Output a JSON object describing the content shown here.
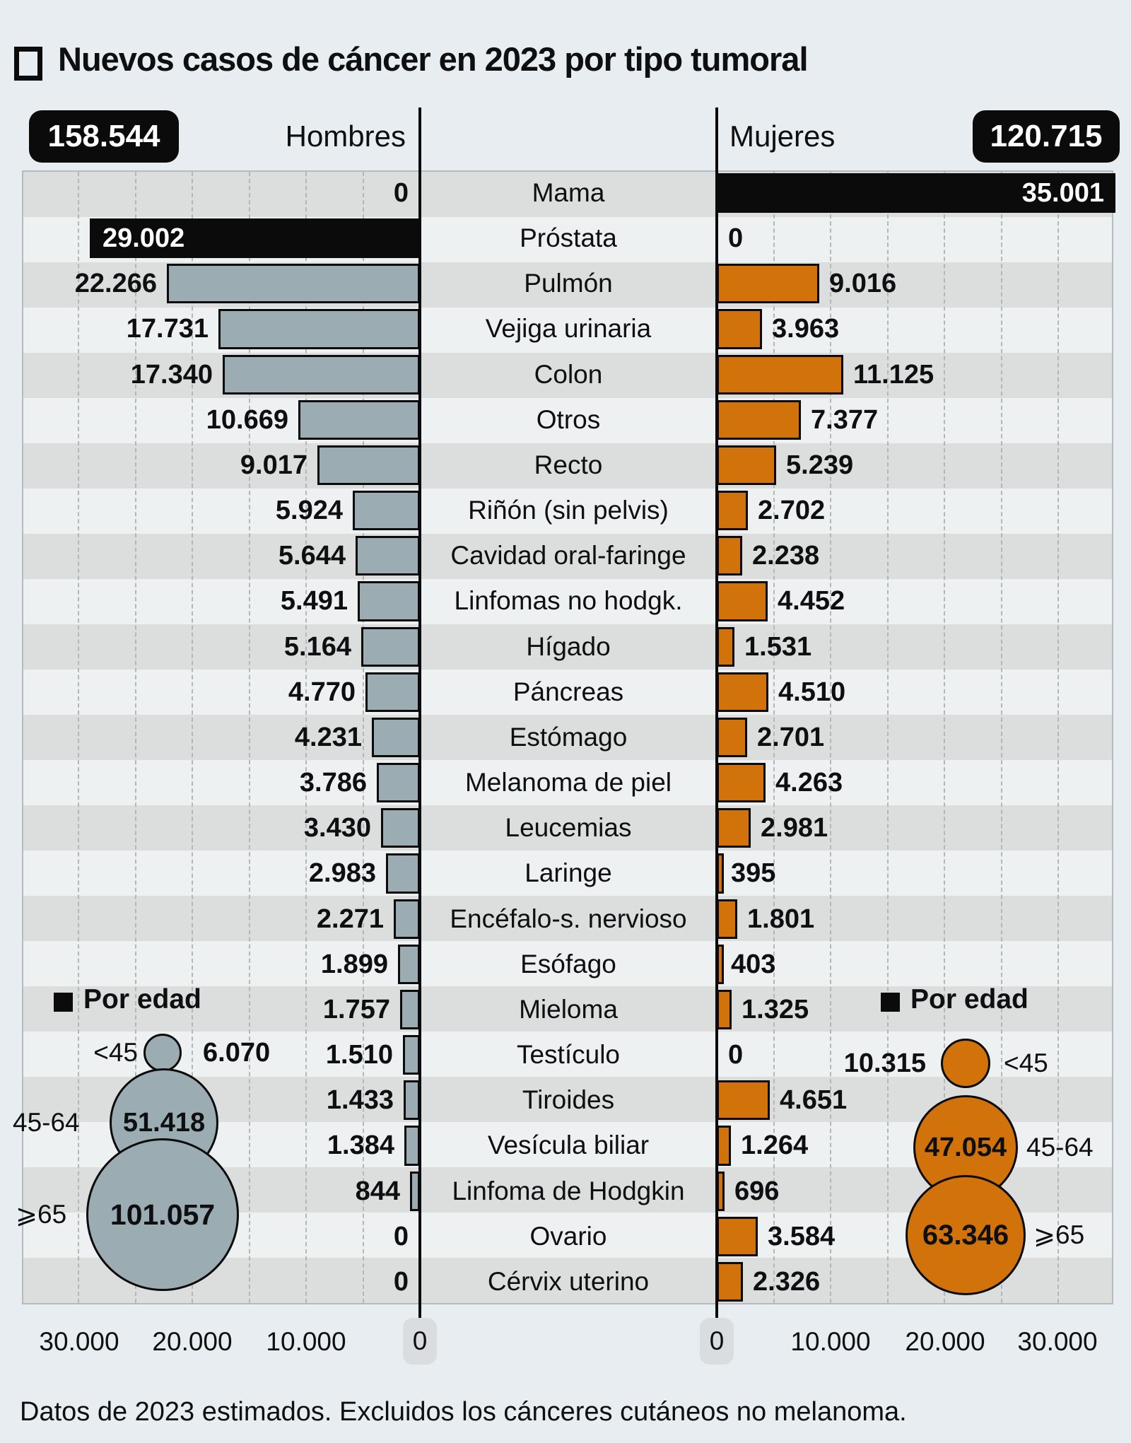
{
  "title": "Nuevos casos de cáncer en 2023 por tipo tumoral",
  "header": {
    "men_total": "158.544",
    "men_label": "Hombres",
    "women_label": "Mujeres",
    "women_total": "120.715"
  },
  "colors": {
    "background": "#e7edf0",
    "men_bar": "#9bacb2",
    "women_bar": "#d1720b",
    "highlight_bar": "#0b0b0b",
    "stripe_dark": "#dcdedd",
    "stripe_light": "#eef1f2"
  },
  "rows": [
    {
      "label": "Mama",
      "men": 0,
      "women": 35001,
      "men_label": "0",
      "women_label": "35.001",
      "women_black": true
    },
    {
      "label": "Próstata",
      "men": 29002,
      "women": 0,
      "men_label": "29.002",
      "women_label": "0",
      "men_black": true
    },
    {
      "label": "Pulmón",
      "men": 22266,
      "women": 9016,
      "men_label": "22.266",
      "women_label": "9.016"
    },
    {
      "label": "Vejiga urinaria",
      "men": 17731,
      "women": 3963,
      "men_label": "17.731",
      "women_label": "3.963"
    },
    {
      "label": "Colon",
      "men": 17340,
      "women": 11125,
      "men_label": "17.340",
      "women_label": "11.125"
    },
    {
      "label": "Otros",
      "men": 10669,
      "women": 7377,
      "men_label": "10.669",
      "women_label": "7.377"
    },
    {
      "label": "Recto",
      "men": 9017,
      "women": 5239,
      "men_label": "9.017",
      "women_label": "5.239"
    },
    {
      "label": "Riñón (sin pelvis)",
      "men": 5924,
      "women": 2702,
      "men_label": "5.924",
      "women_label": "2.702"
    },
    {
      "label": "Cavidad oral-faringe",
      "men": 5644,
      "women": 2238,
      "men_label": "5.644",
      "women_label": "2.238"
    },
    {
      "label": "Linfomas no hodgk.",
      "men": 5491,
      "women": 4452,
      "men_label": "5.491",
      "women_label": "4.452"
    },
    {
      "label": "Hígado",
      "men": 5164,
      "women": 1531,
      "men_label": "5.164",
      "women_label": "1.531"
    },
    {
      "label": "Páncreas",
      "men": 4770,
      "women": 4510,
      "men_label": "4.770",
      "women_label": "4.510"
    },
    {
      "label": "Estómago",
      "men": 4231,
      "women": 2701,
      "men_label": "4.231",
      "women_label": "2.701"
    },
    {
      "label": "Melanoma de piel",
      "men": 3786,
      "women": 4263,
      "men_label": "3.786",
      "women_label": "4.263"
    },
    {
      "label": "Leucemias",
      "men": 3430,
      "women": 2981,
      "men_label": "3.430",
      "women_label": "2.981"
    },
    {
      "label": "Laringe",
      "men": 2983,
      "women": 395,
      "men_label": "2.983",
      "women_label": "395"
    },
    {
      "label": "Encéfalo-s. nervioso",
      "men": 2271,
      "women": 1801,
      "men_label": "2.271",
      "women_label": "1.801"
    },
    {
      "label": "Esófago",
      "men": 1899,
      "women": 403,
      "men_label": "1.899",
      "women_label": "403"
    },
    {
      "label": "Mieloma",
      "men": 1757,
      "women": 1325,
      "men_label": "1.757",
      "women_label": "1.325"
    },
    {
      "label": "Testículo",
      "men": 1510,
      "women": 0,
      "men_label": "1.510",
      "women_label": "0"
    },
    {
      "label": "Tiroides",
      "men": 1433,
      "women": 4651,
      "men_label": "1.433",
      "women_label": "4.651"
    },
    {
      "label": "Vesícula biliar",
      "men": 1384,
      "women": 1264,
      "men_label": "1.384",
      "women_label": "1.264"
    },
    {
      "label": "Linfoma de Hodgkin",
      "men": 844,
      "women": 696,
      "men_label": "844",
      "women_label": "696"
    },
    {
      "label": "Ovario",
      "men": 0,
      "women": 3584,
      "men_label": "0",
      "women_label": "3.584"
    },
    {
      "label": "Cérvix uterino",
      "men": 0,
      "women": 2326,
      "men_label": "0",
      "women_label": "2.326"
    }
  ],
  "by_age": {
    "title": "Por edad",
    "men": [
      {
        "range": "<45",
        "label": "6.070",
        "value": 6070
      },
      {
        "range": "45-64",
        "label": "51.418",
        "value": 51418
      },
      {
        "range": "⩾65",
        "label": "101.057",
        "value": 101057
      }
    ],
    "women": [
      {
        "range": "<45",
        "label": "10.315",
        "value": 10315
      },
      {
        "range": "45-64",
        "label": "47.054",
        "value": 47054
      },
      {
        "range": "⩾65",
        "label": "63.346",
        "value": 63346
      }
    ]
  },
  "axis": {
    "left": [
      "30.000",
      "20.000",
      "10.000",
      "0"
    ],
    "right": [
      "0",
      "10.000",
      "20.000",
      "30.000"
    ]
  },
  "footer": "Datos de 2023 estimados. Excluidos los cánceres cutáneos no melanoma.",
  "chart_data": {
    "type": "bar",
    "subtype": "population-pyramid",
    "title": "Nuevos casos de cáncer en 2023 por tipo tumoral",
    "categories": [
      "Mama",
      "Próstata",
      "Pulmón",
      "Vejiga urinaria",
      "Colon",
      "Otros",
      "Recto",
      "Riñón (sin pelvis)",
      "Cavidad oral-faringe",
      "Linfomas no hodgk.",
      "Hígado",
      "Páncreas",
      "Estómago",
      "Melanoma de piel",
      "Leucemias",
      "Laringe",
      "Encéfalo-s. nervioso",
      "Esófago",
      "Mieloma",
      "Testículo",
      "Tiroides",
      "Vesícula biliar",
      "Linfoma de Hodgkin",
      "Ovario",
      "Cérvix uterino"
    ],
    "series": [
      {
        "name": "Hombres",
        "total": 158544,
        "values": [
          0,
          29002,
          22266,
          17731,
          17340,
          10669,
          9017,
          5924,
          5644,
          5491,
          5164,
          4770,
          4231,
          3786,
          3430,
          2983,
          2271,
          1899,
          1757,
          1510,
          1433,
          1384,
          844,
          0,
          0
        ]
      },
      {
        "name": "Mujeres",
        "total": 120715,
        "values": [
          35001,
          0,
          9016,
          3963,
          11125,
          7377,
          5239,
          2702,
          2238,
          4452,
          1531,
          4510,
          2701,
          4263,
          2981,
          395,
          1801,
          403,
          1325,
          0,
          4651,
          1264,
          696,
          3584,
          2326
        ]
      }
    ],
    "highlighted": {
      "Hombres": "Próstata",
      "Mujeres": "Mama"
    },
    "xlim": [
      0,
      35000
    ],
    "ticks": [
      0,
      10000,
      20000,
      30000
    ],
    "gridline_interval": 5000,
    "grid": true,
    "legend_position": "top",
    "by_age_bubbles": {
      "Hombres": {
        "<45": 6070,
        "45-64": 51418,
        "⩾65": 101057
      },
      "Mujeres": {
        "<45": 10315,
        "45-64": 47054,
        "⩾65": 63346
      }
    }
  }
}
